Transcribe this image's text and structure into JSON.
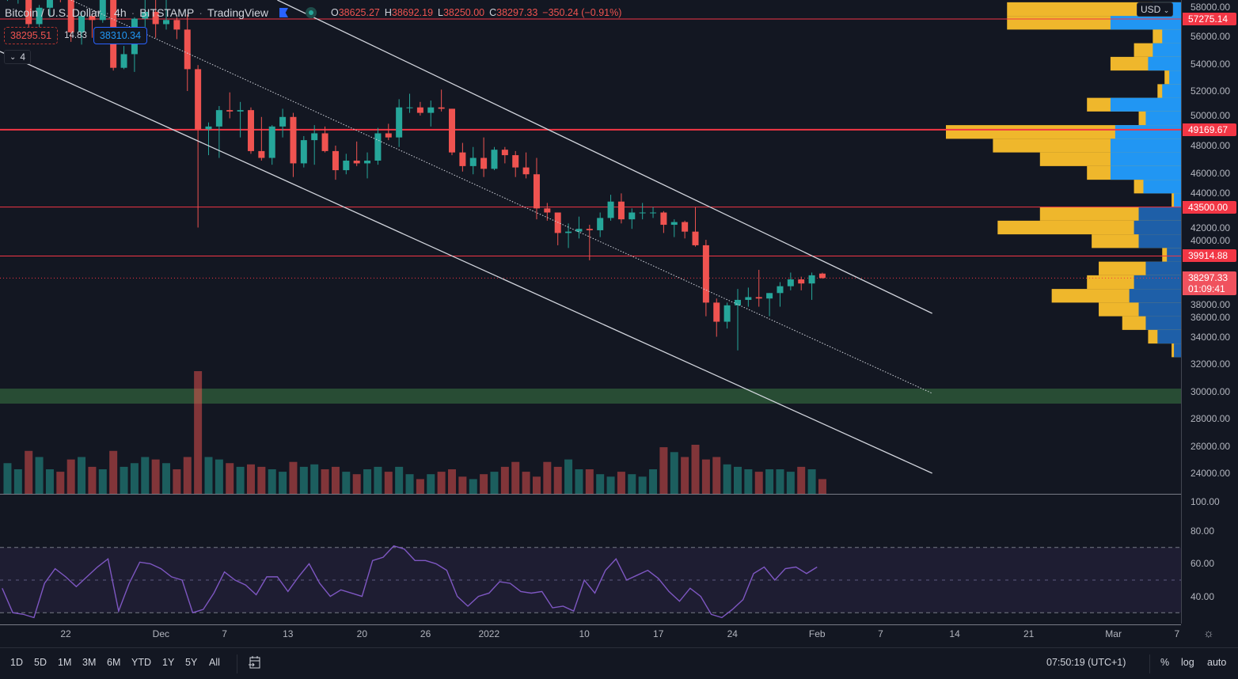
{
  "header": {
    "symbol": "Bitcoin / U.S. Dollar",
    "interval": "4h",
    "exchange": "BITSTAMP",
    "publisher": "TradingView",
    "ohlc": [
      {
        "key": "O",
        "value": "38625.27"
      },
      {
        "key": "H",
        "value": "38692.19"
      },
      {
        "key": "L",
        "value": "38250.00"
      },
      {
        "key": "C",
        "value": "38297.33"
      }
    ],
    "change": "−350.24 (−0.91%)",
    "flag_icon": "flag-icon",
    "status_icon": "market-status-icon"
  },
  "trade": {
    "sell": "38295.51",
    "spread": "14.83",
    "buy": "38310.34"
  },
  "indicators_toggle": {
    "icon": "chevron-down-icon",
    "count": "4"
  },
  "price_axis": {
    "currency": "USD",
    "ticks": [
      "58000.00",
      "56000.00",
      "54000.00",
      "52000.00",
      "50000.00",
      "48000.00",
      "46000.00",
      "44000.00",
      "42000.00",
      "40000.00",
      "38000.00",
      "36000.00",
      "34000.00",
      "32000.00",
      "30000.00",
      "28000.00",
      "26000.00",
      "24000.00"
    ],
    "level_tags": [
      {
        "price": 57275,
        "label": "57275.14"
      },
      {
        "price": 49169.67,
        "label": "49169.67"
      },
      {
        "price": 43500,
        "label": "43500.00"
      },
      {
        "price": 39914.88,
        "label": "39914.88"
      }
    ],
    "last_price": {
      "price": 38297.33,
      "label": "38297.33",
      "countdown": "01:09:41"
    }
  },
  "rsi_axis": {
    "ticks": [
      "100.00",
      "80.00",
      "60.00",
      "40.00"
    ],
    "band": [
      30,
      70
    ],
    "mid": 50
  },
  "time_axis": {
    "ticks": [
      {
        "date": "2021-11-22",
        "label": "22"
      },
      {
        "date": "2021-12-01",
        "label": "Dec"
      },
      {
        "date": "2021-12-07",
        "label": "7"
      },
      {
        "date": "2021-12-13",
        "label": "13"
      },
      {
        "date": "2021-12-20",
        "label": "20"
      },
      {
        "date": "2021-12-26",
        "label": "26"
      },
      {
        "date": "2022-01-01",
        "label": "2022"
      },
      {
        "date": "2022-01-10",
        "label": "10"
      },
      {
        "date": "2022-01-17",
        "label": "17"
      },
      {
        "date": "2022-01-24",
        "label": "24"
      },
      {
        "date": "2022-02-01",
        "label": "Feb"
      },
      {
        "date": "2022-02-07",
        "label": "7"
      },
      {
        "date": "2022-02-14",
        "label": "14"
      },
      {
        "date": "2022-02-21",
        "label": "21"
      },
      {
        "date": "2022-03-01",
        "label": "Mar"
      },
      {
        "date": "2022-03-07",
        "label": "7"
      }
    ],
    "settings_icon": "gear-icon"
  },
  "toolbar": {
    "ranges": [
      "1D",
      "5D",
      "1M",
      "3M",
      "6M",
      "YTD",
      "1Y",
      "5Y",
      "All"
    ],
    "date_range_icon": "calendar-goto-icon",
    "clock": "07:50:19 (UTC+1)",
    "percent": "%",
    "log": "log",
    "auto": "auto"
  },
  "colors": {
    "up": "#26a69a",
    "down": "#ef5350",
    "level": "#f23645",
    "rsi": "#7e57c2",
    "profile_up": "#2196f3",
    "profile_down": "#fbc02d",
    "zone": "#2e5a3a",
    "background": "#131722"
  },
  "chart_data": {
    "type": "candlestick",
    "note_interval": "4h",
    "ohlc_daily": [
      [
        "2021-11-16",
        60200,
        60800,
        58600,
        60300
      ],
      [
        "2021-11-17",
        60300,
        60700,
        58400,
        60400
      ],
      [
        "2021-11-18",
        60400,
        60900,
        56500,
        56900
      ],
      [
        "2021-11-19",
        56900,
        58300,
        55600,
        58100
      ],
      [
        "2021-11-20",
        58100,
        59800,
        57400,
        59700
      ],
      [
        "2021-11-21",
        59700,
        60000,
        58500,
        58700
      ],
      [
        "2021-11-22",
        58700,
        59300,
        55600,
        56300
      ],
      [
        "2021-11-23",
        56300,
        57800,
        55400,
        57500
      ],
      [
        "2021-11-24",
        57500,
        57700,
        55900,
        57200
      ],
      [
        "2021-11-25",
        57200,
        59400,
        57000,
        58900
      ],
      [
        "2021-11-26",
        58900,
        59100,
        53500,
        53700
      ],
      [
        "2021-11-27",
        53700,
        55300,
        53600,
        54700
      ],
      [
        "2021-11-28",
        54700,
        57400,
        53400,
        57300
      ],
      [
        "2021-11-29",
        57300,
        58900,
        56700,
        57800
      ],
      [
        "2021-11-30",
        57800,
        59200,
        55900,
        56900
      ],
      [
        "2021-12-01",
        56900,
        59100,
        56500,
        57200
      ],
      [
        "2021-12-02",
        57200,
        57400,
        55800,
        56500
      ],
      [
        "2021-12-03",
        56500,
        57600,
        52000,
        53600
      ],
      [
        "2021-12-04",
        53600,
        53900,
        42000,
        49200
      ],
      [
        "2021-12-05",
        49200,
        49700,
        47300,
        49400
      ],
      [
        "2021-12-06",
        49400,
        50900,
        47100,
        50600
      ],
      [
        "2021-12-07",
        50600,
        51900,
        50000,
        50500
      ],
      [
        "2021-12-08",
        50500,
        51200,
        48600,
        50600
      ],
      [
        "2021-12-09",
        50600,
        50800,
        47400,
        47600
      ],
      [
        "2021-12-10",
        47600,
        50100,
        46900,
        47100
      ],
      [
        "2021-12-11",
        47100,
        49500,
        46600,
        49400
      ],
      [
        "2021-12-12",
        49400,
        50700,
        48600,
        50100
      ],
      [
        "2021-12-13",
        50100,
        50400,
        45700,
        46700
      ],
      [
        "2021-12-14",
        46700,
        48700,
        46400,
        48400
      ],
      [
        "2021-12-15",
        48400,
        49500,
        46600,
        48900
      ],
      [
        "2021-12-16",
        48900,
        49400,
        47500,
        47600
      ],
      [
        "2021-12-17",
        47600,
        48000,
        45500,
        46200
      ],
      [
        "2021-12-18",
        46200,
        47400,
        45900,
        46900
      ],
      [
        "2021-12-19",
        46900,
        48300,
        46500,
        46700
      ],
      [
        "2021-12-20",
        46700,
        47500,
        45600,
        46900
      ],
      [
        "2021-12-21",
        46900,
        49300,
        46600,
        48900
      ],
      [
        "2021-12-22",
        48900,
        49600,
        48400,
        48600
      ],
      [
        "2021-12-23",
        48600,
        51400,
        47900,
        50800
      ],
      [
        "2021-12-24",
        50800,
        51800,
        50400,
        50800
      ],
      [
        "2021-12-25",
        50800,
        51200,
        50200,
        50400
      ],
      [
        "2021-12-26",
        50400,
        51300,
        49400,
        50800
      ],
      [
        "2021-12-27",
        50800,
        52100,
        50500,
        50700
      ],
      [
        "2021-12-28",
        50700,
        50700,
        47300,
        47500
      ],
      [
        "2021-12-29",
        47500,
        48200,
        46100,
        46500
      ],
      [
        "2021-12-30",
        46500,
        47900,
        45900,
        47100
      ],
      [
        "2021-12-31",
        47100,
        48600,
        45700,
        46300
      ],
      [
        "2022-01-01",
        46300,
        47900,
        46200,
        47700
      ],
      [
        "2022-01-02",
        47700,
        47900,
        46700,
        47300
      ],
      [
        "2022-01-03",
        47300,
        47600,
        45700,
        46400
      ],
      [
        "2022-01-04",
        46400,
        47500,
        45600,
        45900
      ],
      [
        "2022-01-05",
        45900,
        47100,
        42600,
        43400
      ],
      [
        "2022-01-06",
        43400,
        43800,
        42500,
        43100
      ],
      [
        "2022-01-07",
        43100,
        43100,
        40700,
        41600
      ],
      [
        "2022-01-08",
        41600,
        42300,
        40500,
        41700
      ],
      [
        "2022-01-09",
        41700,
        42800,
        41200,
        41900
      ],
      [
        "2022-01-10",
        41900,
        42200,
        39600,
        41800
      ],
      [
        "2022-01-11",
        41800,
        43100,
        41300,
        42700
      ],
      [
        "2022-01-12",
        42700,
        44400,
        42500,
        43900
      ],
      [
        "2022-01-13",
        43900,
        44500,
        42300,
        42600
      ],
      [
        "2022-01-14",
        42600,
        43400,
        41900,
        43100
      ],
      [
        "2022-01-15",
        43100,
        43800,
        42600,
        43100
      ],
      [
        "2022-01-16",
        43100,
        43500,
        42700,
        43100
      ],
      [
        "2022-01-17",
        43100,
        43200,
        41600,
        42200
      ],
      [
        "2022-01-18",
        42200,
        42600,
        41300,
        42400
      ],
      [
        "2022-01-19",
        42400,
        42500,
        41200,
        41700
      ],
      [
        "2022-01-20",
        41700,
        43500,
        40600,
        40700
      ],
      [
        "2022-01-21",
        40700,
        41100,
        35500,
        36500
      ],
      [
        "2022-01-22",
        36500,
        36800,
        34000,
        35100
      ],
      [
        "2022-01-23",
        35100,
        36500,
        34600,
        36300
      ],
      [
        "2022-01-24",
        36300,
        37500,
        33000,
        36700
      ],
      [
        "2022-01-25",
        36700,
        37600,
        36200,
        36900
      ],
      [
        "2022-01-26",
        36900,
        38900,
        36200,
        36800
      ],
      [
        "2022-01-27",
        36800,
        37200,
        35500,
        37200
      ],
      [
        "2022-01-28",
        37200,
        38000,
        36200,
        37700
      ],
      [
        "2022-01-29",
        37700,
        38700,
        37400,
        38200
      ],
      [
        "2022-01-30",
        38200,
        38400,
        37400,
        37900
      ],
      [
        "2022-01-31",
        37900,
        38700,
        36700,
        38500
      ],
      [
        "2022-02-01",
        38625.27,
        38692.19,
        38250,
        38297.33
      ]
    ],
    "volume_relative": [
      0.25,
      0.2,
      0.35,
      0.3,
      0.2,
      0.18,
      0.28,
      0.3,
      0.22,
      0.2,
      0.35,
      0.22,
      0.25,
      0.3,
      0.28,
      0.25,
      0.2,
      0.3,
      1.0,
      0.3,
      0.28,
      0.25,
      0.22,
      0.24,
      0.22,
      0.2,
      0.18,
      0.26,
      0.22,
      0.24,
      0.2,
      0.22,
      0.18,
      0.16,
      0.2,
      0.22,
      0.18,
      0.22,
      0.16,
      0.12,
      0.16,
      0.18,
      0.2,
      0.14,
      0.12,
      0.16,
      0.18,
      0.22,
      0.26,
      0.18,
      0.14,
      0.26,
      0.22,
      0.28,
      0.2,
      0.2,
      0.16,
      0.14,
      0.18,
      0.16,
      0.14,
      0.2,
      0.38,
      0.34,
      0.3,
      0.4,
      0.28,
      0.3,
      0.24,
      0.22,
      0.2,
      0.18,
      0.2,
      0.2,
      0.18,
      0.22,
      0.2,
      0.12
    ],
    "rsi_daily": [
      45,
      30,
      29,
      27,
      48,
      57,
      52,
      46,
      52,
      58,
      63,
      31,
      48,
      61,
      60,
      57,
      52,
      50,
      30,
      32,
      42,
      55,
      50,
      47,
      41,
      52,
      52,
      43,
      52,
      60,
      48,
      40,
      44,
      42,
      40,
      62,
      64,
      71,
      69,
      62,
      62,
      60,
      56,
      40,
      34,
      40,
      42,
      49,
      48,
      43,
      42,
      43,
      33,
      34,
      31,
      50,
      42,
      56,
      63,
      50,
      53,
      56,
      51,
      43,
      37,
      45,
      40,
      29,
      27,
      32,
      38,
      54,
      58,
      50,
      57,
      58,
      54,
      58
    ],
    "horizontal_levels": [
      57275,
      49169.67,
      43500,
      39914.88
    ],
    "last_price_line": 38297.33,
    "zone": {
      "from": 29100,
      "to": 30200
    },
    "trend_lines": [
      {
        "style": "solid",
        "from": [
          "2021-12-12T00:00",
          58667
        ],
        "to": [
          "2022-02-11T21:00",
          35710
        ]
      },
      {
        "style": "dotted",
        "from": [
          "2021-11-22T12:00",
          58667
        ],
        "to": [
          "2022-02-11T21:00",
          29855
        ]
      },
      {
        "style": "solid",
        "from": [
          "2021-11-15T19:00",
          54900
        ],
        "to": [
          "2022-02-11T21:00",
          24000
        ]
      }
    ],
    "volume_profile": [
      [
        58000,
        0.74,
        0.12
      ],
      [
        57000,
        0.74,
        0.3
      ],
      [
        56000,
        0.12,
        0.08
      ],
      [
        55000,
        0.2,
        0.12
      ],
      [
        54000,
        0.3,
        0.14
      ],
      [
        53000,
        0.07,
        0.05
      ],
      [
        52000,
        0.1,
        0.08
      ],
      [
        51000,
        0.4,
        0.3
      ],
      [
        50000,
        0.18,
        0.15
      ],
      [
        49000,
        1.0,
        0.28
      ],
      [
        48000,
        0.8,
        0.3
      ],
      [
        47000,
        0.6,
        0.3
      ],
      [
        46000,
        0.4,
        0.3
      ],
      [
        45000,
        0.2,
        0.16
      ],
      [
        44000,
        0.04,
        0.03
      ],
      [
        43000,
        0.6,
        0.18
      ],
      [
        42000,
        0.78,
        0.2
      ],
      [
        41000,
        0.38,
        0.18
      ],
      [
        40000,
        0.08,
        0.06
      ],
      [
        39000,
        0.35,
        0.15
      ],
      [
        38000,
        0.4,
        0.2
      ],
      [
        37000,
        0.55,
        0.22
      ],
      [
        36000,
        0.35,
        0.18
      ],
      [
        35000,
        0.25,
        0.15
      ],
      [
        34000,
        0.14,
        0.1
      ],
      [
        33000,
        0.04,
        0.03
      ]
    ],
    "ylim": [
      23000,
      58667
    ],
    "rsi_ylim": [
      0,
      100
    ]
  }
}
